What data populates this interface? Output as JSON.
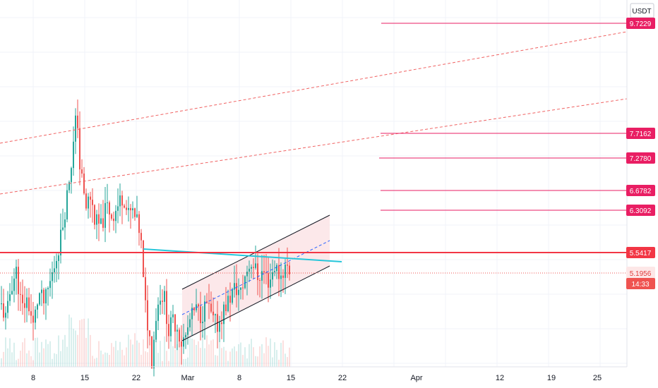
{
  "chart_data": {
    "type": "candlestick",
    "currency": "USDT",
    "colors": {
      "up": "#26a69a",
      "down": "#ef5350",
      "level_line": "#e91e63",
      "support_line": "#f23645",
      "trend_line": "#26c6da",
      "channel_line": "#131722",
      "channel_fill": "#fce4e6",
      "dashed_red": "#f06262",
      "dashed_blue": "#2962ff",
      "last_price": "#ef5350",
      "grid": "#f0f3fa"
    },
    "x_ticks": [
      "8",
      "15",
      "22",
      "Mar",
      "8",
      "15",
      "22",
      "Apr",
      "12",
      "19",
      "25"
    ],
    "horizontal_levels": [
      {
        "label": "9.7229",
        "value": 9.7229
      },
      {
        "label": "7.7162",
        "value": 7.7162
      },
      {
        "label": "7.2780",
        "value": 7.278
      },
      {
        "label": "6.6782",
        "value": 6.6782
      },
      {
        "label": "6.3092",
        "value": 6.3092
      }
    ],
    "support_level": {
      "label": "5.5417",
      "value": 5.5417
    },
    "last_price": {
      "label": "5.1956",
      "value": 5.1956,
      "countdown": "14:33"
    },
    "grid": true
  }
}
